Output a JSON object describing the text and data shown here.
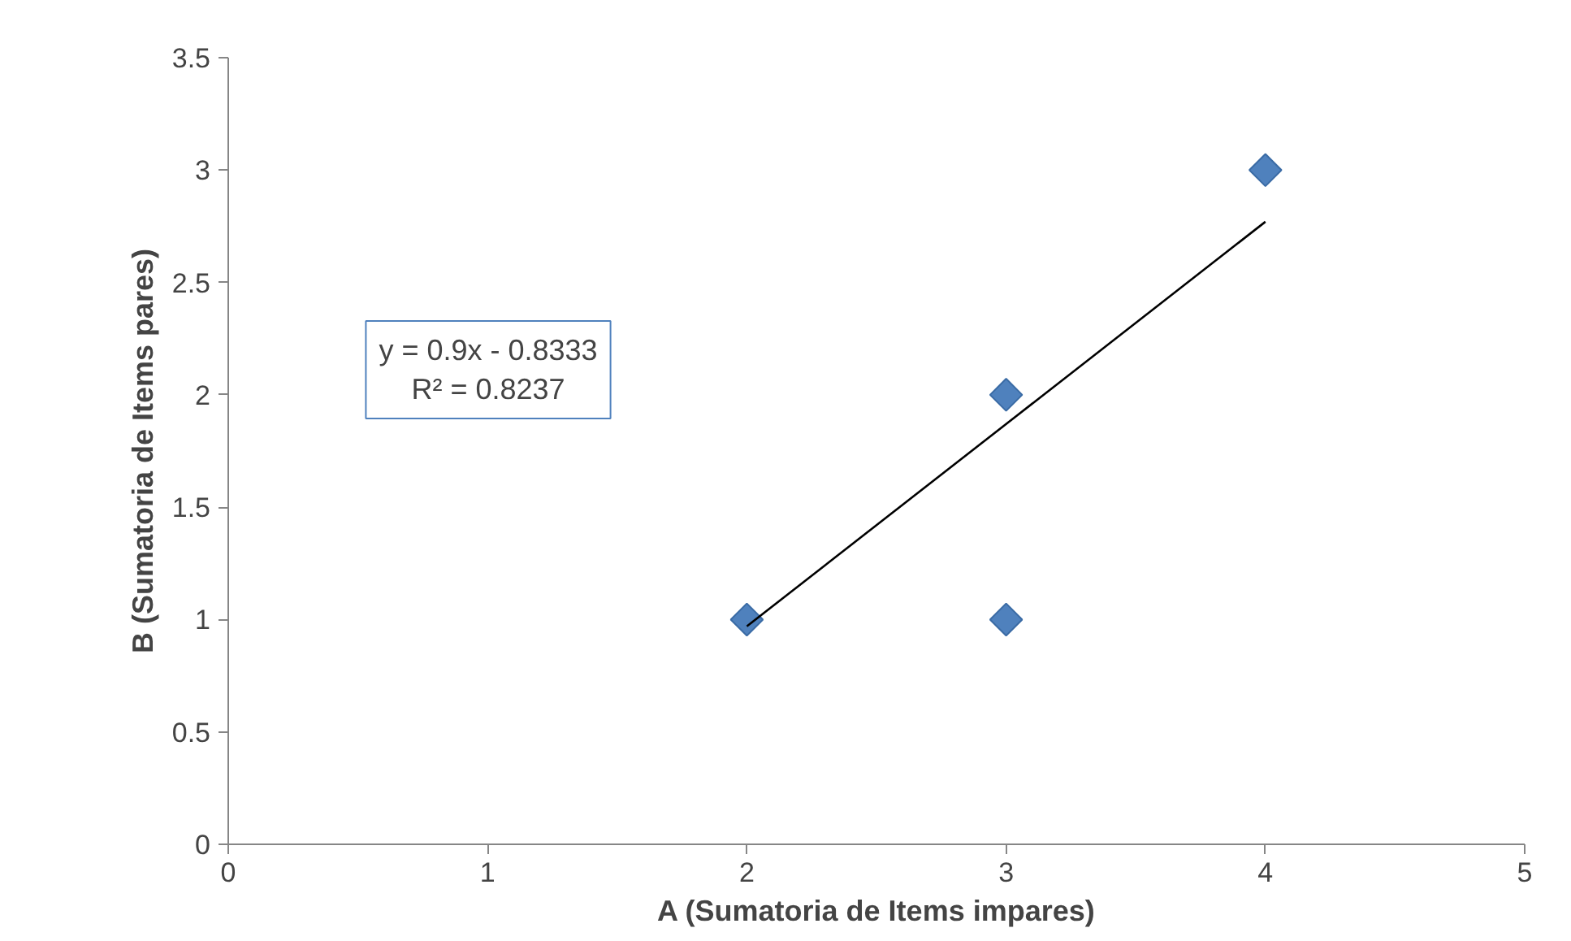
{
  "chart_data": {
    "type": "scatter",
    "xlabel": "A (Sumatoria de Items impares)",
    "ylabel": "B (Sumatoria de Items pares)",
    "annotations": [
      "y = 0.9x - 0.8333",
      "R² = 0.8237"
    ],
    "series": [
      {
        "color": "#4f81bd",
        "marker": "diamond",
        "x": [
          2,
          3,
          3,
          4
        ],
        "values": [
          1,
          2,
          1,
          3
        ]
      },
      {
        "type": "line",
        "color": "#000000",
        "x": [
          2,
          4
        ],
        "values": [
          0.97,
          2.77
        ]
      }
    ],
    "xlim": [
      0,
      5
    ],
    "xticks": [
      0,
      1,
      2,
      3,
      4,
      5
    ],
    "ylim": [
      0,
      3.5
    ],
    "yticks": [
      0,
      0.5,
      1,
      1.5,
      2,
      2.5,
      3,
      3.5
    ],
    "grid": false
  }
}
